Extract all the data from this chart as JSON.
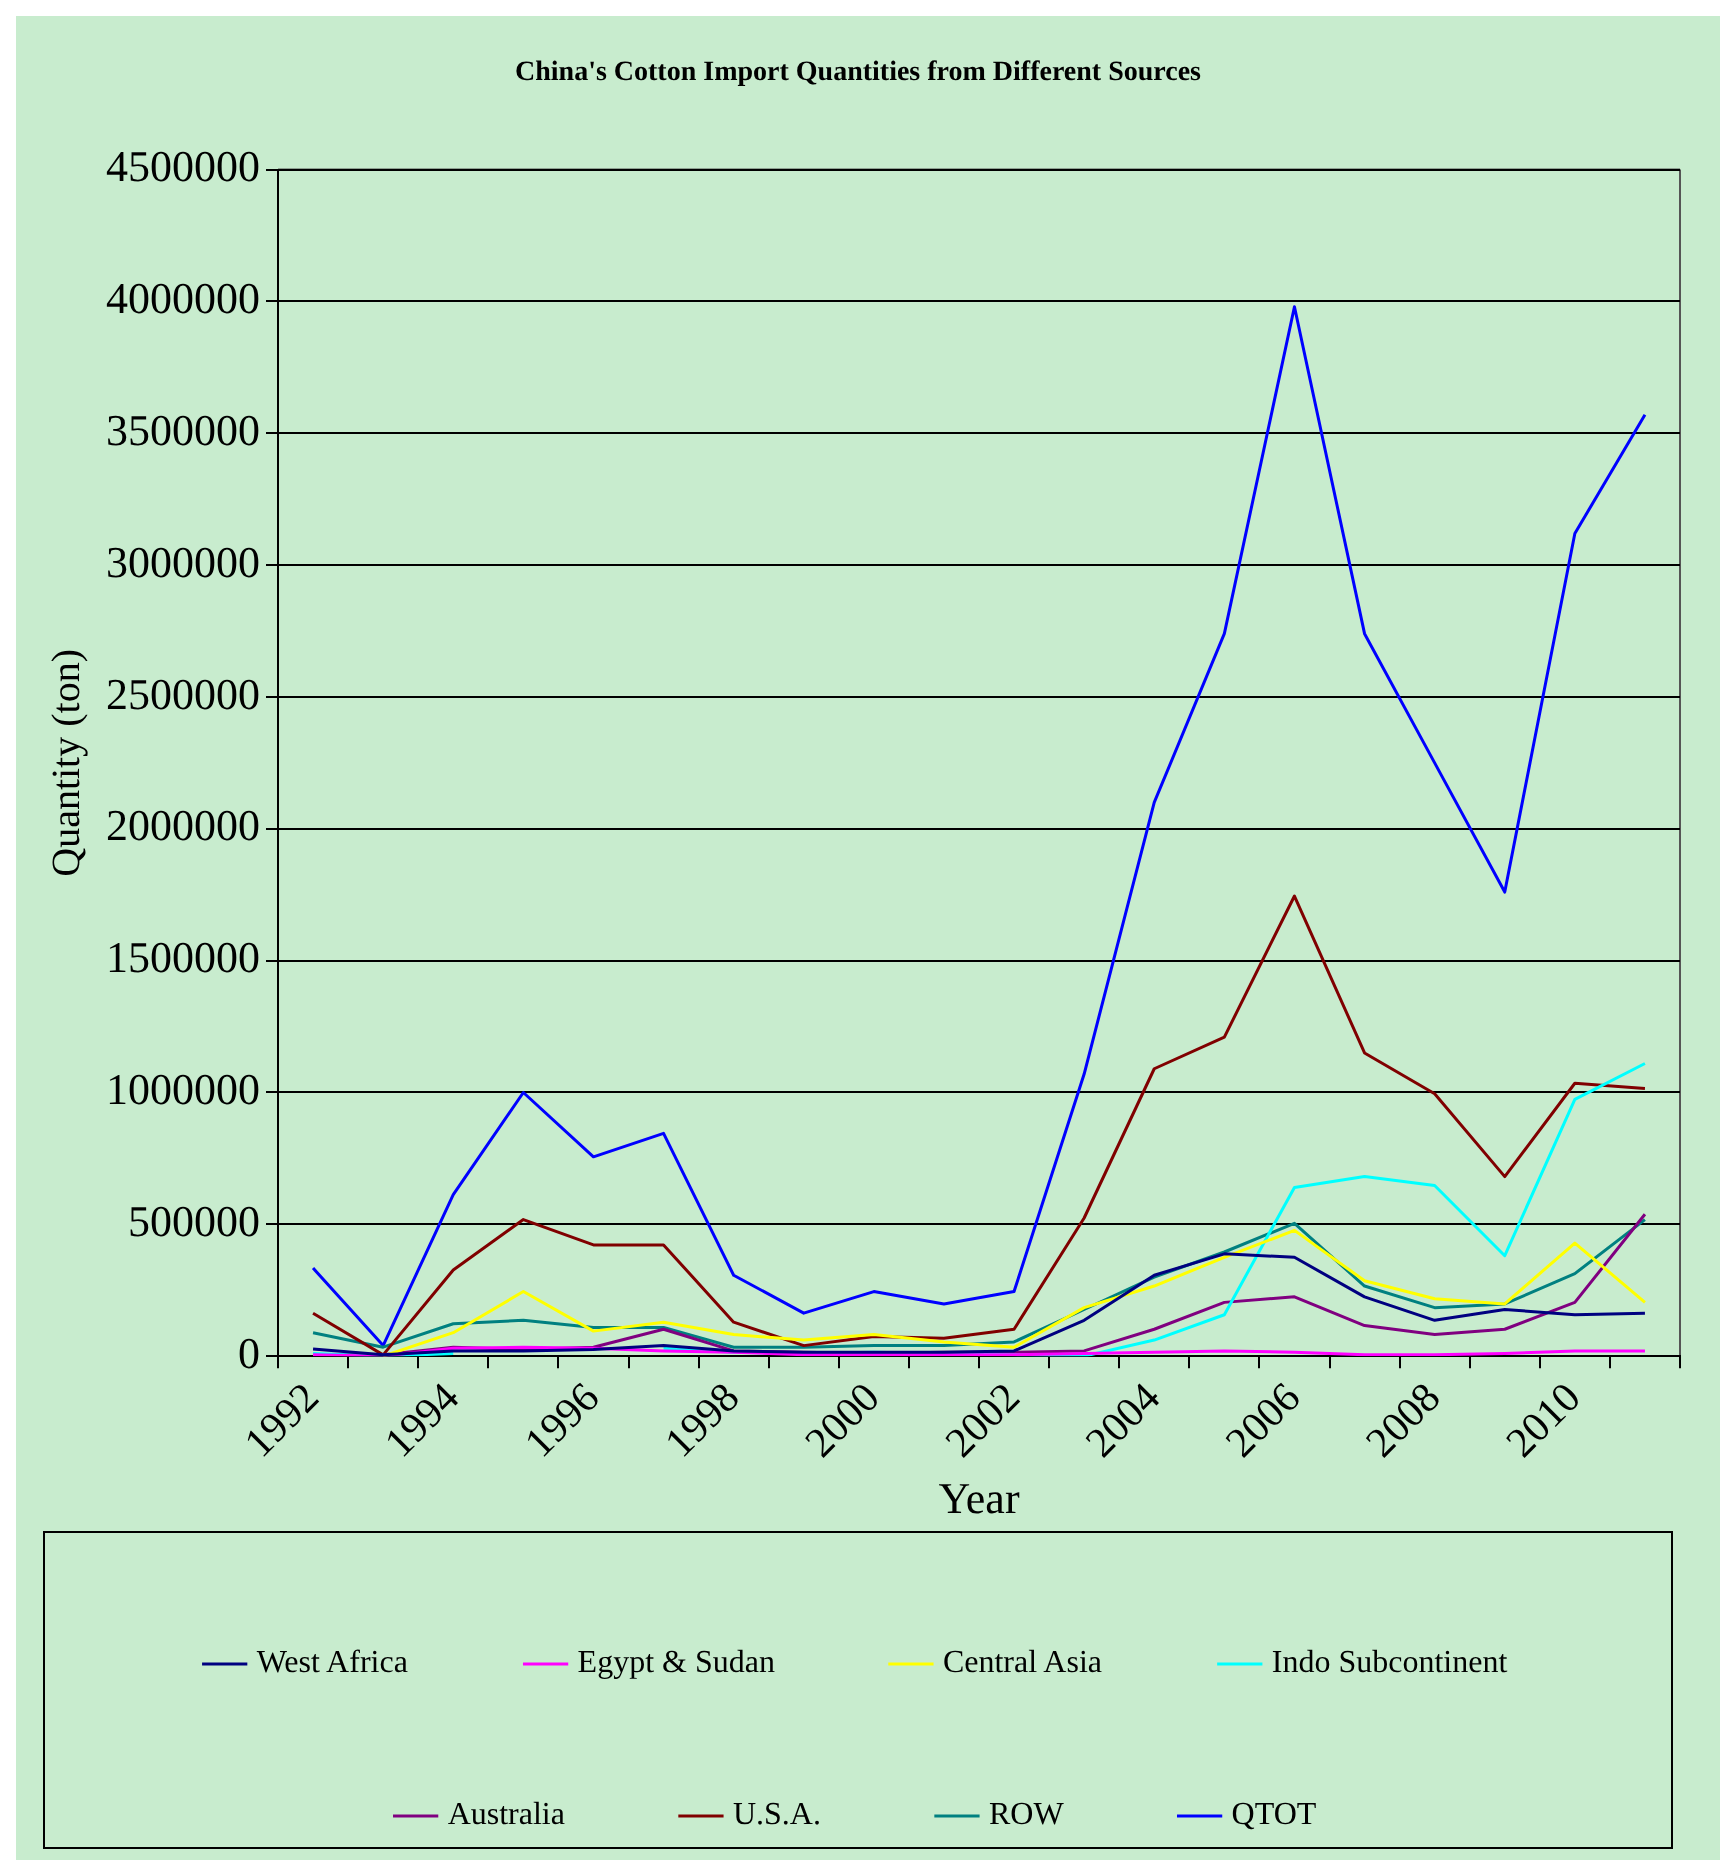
{
  "chart_data": {
    "type": "line",
    "title": "China's Cotton Import Quantities from Different Sources",
    "xlabel": "Year",
    "ylabel": "Quantity (ton)",
    "categories": [
      "1992",
      null,
      "1994",
      null,
      "1996",
      null,
      "1998",
      null,
      "2000",
      null,
      "2002",
      null,
      "2004",
      null,
      "2006",
      null,
      "2008",
      null,
      "2010",
      null
    ],
    "ylim": [
      0,
      4500000
    ],
    "yticks": [
      0,
      500000,
      1000000,
      1500000,
      2000000,
      2500000,
      3000000,
      3500000,
      4000000,
      4500000
    ],
    "grid": "y",
    "legend": "bottom",
    "marker": "none",
    "line_style": "solid",
    "series": [
      {
        "name": "West Africa",
        "color": "#000080",
        "values": [
          27000,
          5000,
          20000,
          20000,
          25000,
          40000,
          20000,
          15000,
          15000,
          15000,
          20000,
          136000,
          307000,
          388000,
          375000,
          225000,
          136000,
          177000,
          157000,
          163000
        ]
      },
      {
        "name": "Egypt & Sudan",
        "color": "#ff00ff",
        "values": [
          5000,
          0,
          30000,
          34000,
          30000,
          20000,
          15000,
          5000,
          5000,
          5000,
          5000,
          10000,
          15000,
          20000,
          15000,
          5000,
          5000,
          10000,
          20000,
          20000
        ]
      },
      {
        "name": "Central Asia",
        "color": "#ffff00",
        "values": [
          null,
          0,
          89000,
          245000,
          95000,
          129000,
          82000,
          61000,
          82000,
          54000,
          34000,
          184000,
          266000,
          375000,
          477000,
          286000,
          218000,
          198000,
          429000,
          204000
        ]
      },
      {
        "name": "Indo Subcontinent",
        "color": "#00ffff",
        "values": [
          10000,
          0,
          10000,
          null,
          null,
          30000,
          15000,
          10000,
          15000,
          10000,
          5000,
          0,
          61000,
          157000,
          640000,
          681000,
          647000,
          381000,
          974000,
          1110000
        ]
      },
      {
        "name": "Australia",
        "color": "#800080",
        "values": [
          5000,
          5000,
          34000,
          25000,
          34000,
          102000,
          20000,
          15000,
          10000,
          15000,
          15000,
          20000,
          102000,
          204000,
          225000,
          116000,
          82000,
          102000,
          204000,
          538000
        ]
      },
      {
        "name": "U.S.A.",
        "color": "#800000",
        "values": [
          163000,
          5000,
          327000,
          518000,
          422000,
          422000,
          129000,
          40000,
          75000,
          68000,
          102000,
          524000,
          1090000,
          1210000,
          1745000,
          1150000,
          995000,
          681000,
          1035000,
          1015000
        ]
      },
      {
        "name": "ROW",
        "color": "#008080",
        "values": [
          89000,
          34000,
          123000,
          136000,
          109000,
          109000,
          34000,
          34000,
          40000,
          40000,
          54000,
          177000,
          300000,
          395000,
          504000,
          266000,
          184000,
          198000,
          313000,
          518000
        ]
      },
      {
        "name": "QTOT",
        "color": "#0000ff",
        "values": [
          334000,
          40000,
          613000,
          1000000,
          756000,
          845000,
          307000,
          163000,
          245000,
          198000,
          245000,
          1070000,
          2100000,
          2740000,
          3980000,
          2740000,
          2250000,
          1760000,
          3120000,
          3570000
        ]
      }
    ]
  }
}
